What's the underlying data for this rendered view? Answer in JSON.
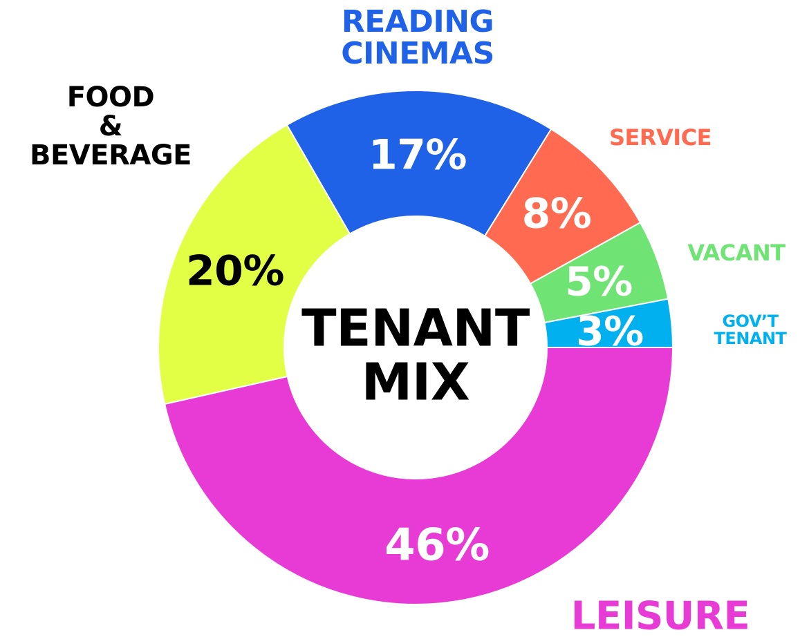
{
  "chart_data": {
    "type": "pie",
    "title": "TENANT MIX",
    "categories": [
      "LEISURE",
      "FOOD & BEVERAGE",
      "READING CINEMAS",
      "SERVICE",
      "VACANT",
      "GOV’T TENANT"
    ],
    "values": [
      46,
      20,
      17,
      8,
      5,
      3
    ],
    "value_labels": [
      "46%",
      "20%",
      "17%",
      "8%",
      "5%",
      "3%"
    ],
    "colors": [
      "#e83bd6",
      "#e3ff45",
      "#1f62e8",
      "#ff6a50",
      "#6fe374",
      "#00b0ef"
    ],
    "donut": true
  }
}
